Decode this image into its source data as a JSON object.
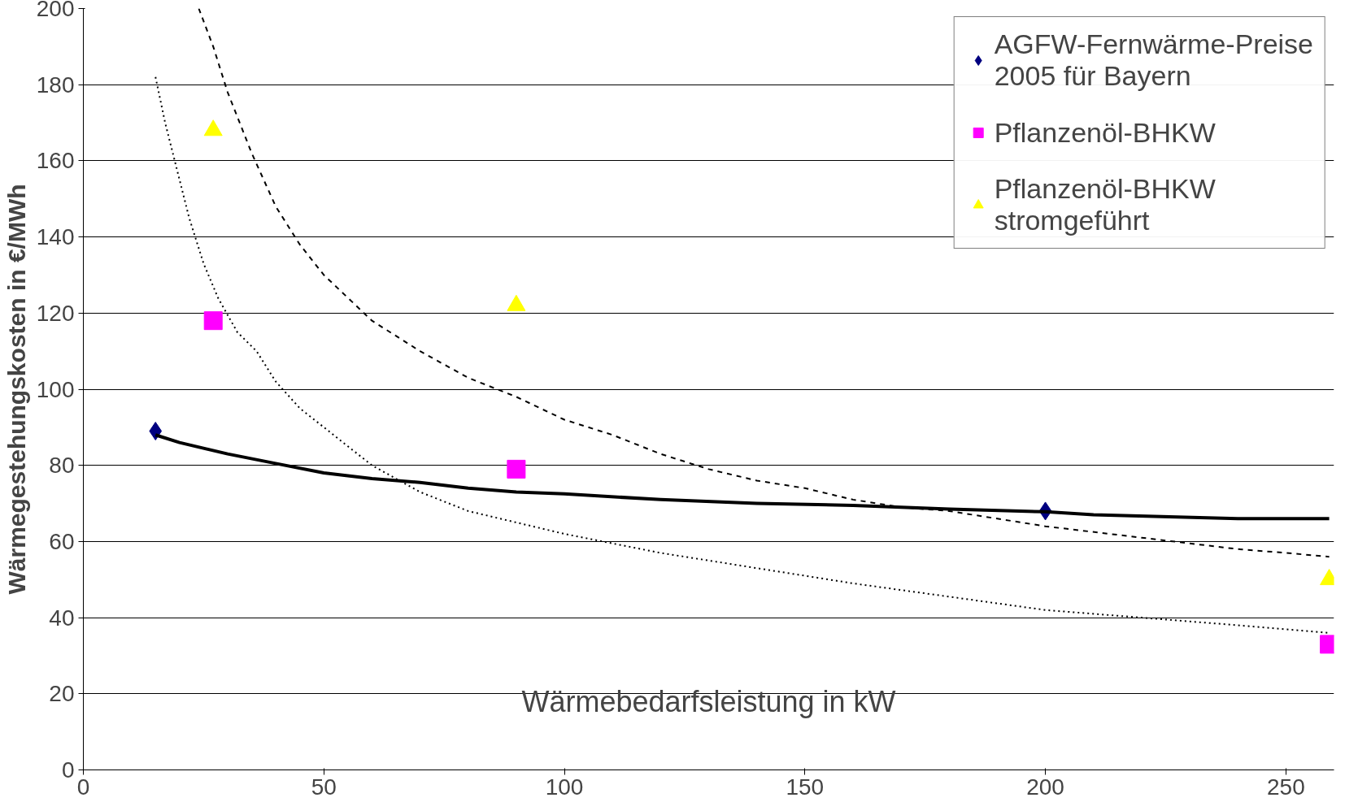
{
  "chart_data": {
    "type": "scatter",
    "xlabel": "Wärmebedarfsleistung in kW",
    "ylabel": "Wärmegestehungskosten in €/MWh",
    "xlim": [
      0,
      260
    ],
    "ylim": [
      0,
      200
    ],
    "xticks": [
      0,
      50,
      100,
      150,
      200,
      250
    ],
    "yticks": [
      0,
      20,
      40,
      60,
      80,
      100,
      120,
      140,
      160,
      180,
      200
    ],
    "grid": "y",
    "legend": "top right",
    "series": [
      {
        "name": "AGFW-Fernwärme-Preise 2005 für Bayern",
        "color": "#000080",
        "marker": "diamond",
        "x": [
          15,
          200
        ],
        "values": [
          89,
          68
        ]
      },
      {
        "name": "Pflanzenöl-BHKW",
        "color": "#ff00ff",
        "marker": "square",
        "x": [
          27,
          90,
          259
        ],
        "values": [
          118,
          79,
          33
        ]
      },
      {
        "name": "Pflanzenöl-BHKW stromgeführt",
        "color": "#ffff00",
        "marker": "triangle",
        "x": [
          27,
          90,
          259
        ],
        "values": [
          168,
          122,
          50
        ]
      },
      {
        "type": "line",
        "color": "#000000",
        "line_style": "solid",
        "x": [
          15,
          20,
          30,
          40,
          50,
          60,
          70,
          80,
          90,
          100,
          120,
          140,
          160,
          180,
          200,
          210,
          240,
          259
        ],
        "values": [
          88,
          86,
          83,
          80.5,
          78,
          76.5,
          75.5,
          74,
          73,
          72.5,
          71,
          70,
          69.5,
          68.5,
          67.8,
          67,
          66,
          66
        ]
      },
      {
        "type": "line",
        "color": "#000000",
        "line_style": "dashed",
        "x": [
          24,
          27,
          30,
          35,
          40,
          45,
          50,
          60,
          70,
          80,
          90,
          100,
          110,
          120,
          130,
          140,
          150,
          160,
          170,
          180,
          190,
          200,
          220,
          240,
          250,
          259
        ],
        "values": [
          200,
          190,
          178,
          162,
          148,
          138,
          130,
          118,
          110,
          103,
          98,
          92,
          88,
          83,
          79,
          76,
          74,
          71,
          69,
          68,
          66,
          64,
          61,
          58,
          57,
          56
        ]
      },
      {
        "type": "line",
        "color": "#000000",
        "line_style": "dotted",
        "x": [
          15,
          17,
          19,
          22,
          25,
          28,
          32,
          36,
          40,
          45,
          50,
          55,
          60,
          70,
          80,
          90,
          100,
          120,
          140,
          160,
          180,
          200,
          220,
          240,
          259
        ],
        "values": [
          182,
          170,
          160,
          145,
          133,
          124,
          115,
          110,
          102,
          95,
          90,
          85,
          80,
          73,
          68,
          65,
          62,
          57,
          53,
          49,
          45.5,
          42,
          40,
          38,
          36
        ]
      }
    ]
  }
}
